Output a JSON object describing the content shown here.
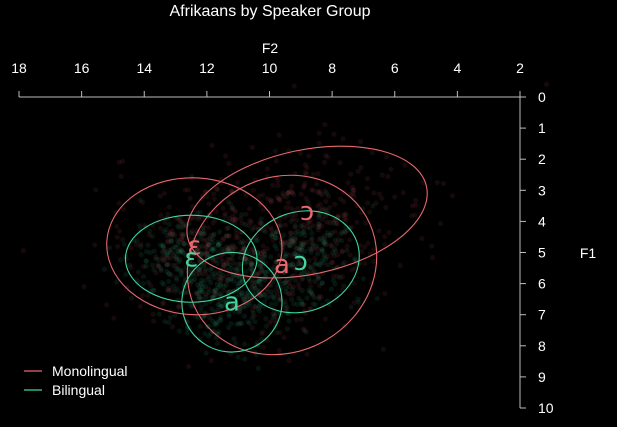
{
  "chart_data": {
    "type": "scatter",
    "title": "Afrikaans by Speaker Group",
    "xlabel": "F2",
    "ylabel": "F1",
    "x_axis": {
      "ticks": [
        18,
        16,
        14,
        12,
        10,
        8,
        6,
        4,
        2
      ],
      "reversed": true,
      "position": "top"
    },
    "y_axis": {
      "ticks": [
        0,
        1,
        2,
        3,
        4,
        5,
        6,
        7,
        8,
        9,
        10
      ],
      "reversed": true,
      "position": "right"
    },
    "xlim": [
      18,
      2
    ],
    "ylim": [
      0,
      10
    ],
    "legend": {
      "placement": "bottom-left",
      "entries": [
        {
          "label": "Monolingual",
          "color": "#e8686e"
        },
        {
          "label": "Bilingual",
          "color": "#3fd6a0"
        }
      ]
    },
    "series": [
      {
        "name": "Monolingual",
        "color": "#e8686e",
        "vowels": [
          {
            "label": "ɛ",
            "x": 12.4,
            "y": 4.8,
            "ellipse": {
              "rx": 2.8,
              "ry": 2.2,
              "angle": -3
            }
          },
          {
            "label": "ɔ",
            "x": 8.8,
            "y": 3.7,
            "ellipse": {
              "rx": 3.9,
              "ry": 2.0,
              "angle": 12
            }
          },
          {
            "label": "a",
            "x": 9.6,
            "y": 5.4,
            "ellipse": {
              "rx": 3.1,
              "ry": 2.8,
              "angle": 30
            }
          }
        ]
      },
      {
        "name": "Bilingual",
        "color": "#3fd6a0",
        "vowels": [
          {
            "label": "ɛ",
            "x": 12.5,
            "y": 5.2,
            "ellipse": {
              "rx": 2.1,
              "ry": 1.4,
              "angle": 0
            }
          },
          {
            "label": "ɔ",
            "x": 9.0,
            "y": 5.3,
            "ellipse": {
              "rx": 1.9,
              "ry": 1.6,
              "angle": 20
            }
          },
          {
            "label": "a",
            "x": 11.2,
            "y": 6.6,
            "ellipse": {
              "rx": 1.6,
              "ry": 1.6,
              "angle": 15
            }
          }
        ]
      }
    ]
  }
}
